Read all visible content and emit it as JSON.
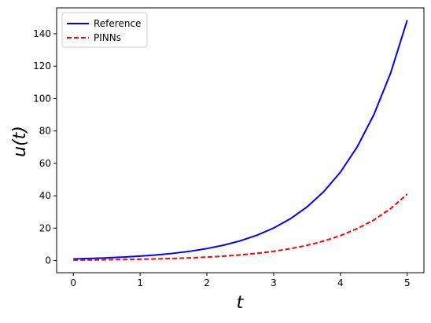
{
  "chart_data": {
    "type": "line",
    "title": "",
    "xlabel": "t",
    "ylabel": "u(t)",
    "xlim": [
      -0.25,
      5.25
    ],
    "ylim": [
      -7.5,
      156
    ],
    "xticks": [
      0,
      1,
      2,
      3,
      4,
      5
    ],
    "yticks": [
      0,
      20,
      40,
      60,
      80,
      100,
      120,
      140
    ],
    "grid": false,
    "legend_position": "top-left",
    "series": [
      {
        "name": "Reference",
        "color": "#0000ff",
        "style": "solid",
        "x": [
          0,
          0.25,
          0.5,
          0.75,
          1,
          1.25,
          1.5,
          1.75,
          2,
          2.25,
          2.5,
          2.75,
          3,
          3.25,
          3.5,
          3.75,
          4,
          4.25,
          4.5,
          4.75,
          5
        ],
        "y": [
          1.0,
          1.28,
          1.65,
          2.12,
          2.72,
          3.49,
          4.48,
          5.75,
          7.39,
          9.49,
          12.18,
          15.64,
          20.09,
          25.79,
          33.12,
          42.52,
          54.6,
          70.11,
          90.02,
          115.58,
          148.4
        ]
      },
      {
        "name": "PINNs",
        "color": "#ff0000",
        "style": "dashed",
        "x": [
          0,
          0.25,
          0.5,
          0.75,
          1,
          1.25,
          1.5,
          1.75,
          2,
          2.25,
          2.5,
          2.75,
          3,
          3.25,
          3.5,
          3.75,
          4,
          4.25,
          4.5,
          4.75,
          5
        ],
        "y": [
          0.3,
          0.38,
          0.49,
          0.62,
          0.79,
          1.01,
          1.29,
          1.65,
          2.12,
          2.71,
          3.48,
          4.46,
          5.71,
          7.32,
          9.38,
          12.02,
          15.4,
          19.7,
          25.0,
          32.0,
          41.0
        ]
      }
    ]
  }
}
